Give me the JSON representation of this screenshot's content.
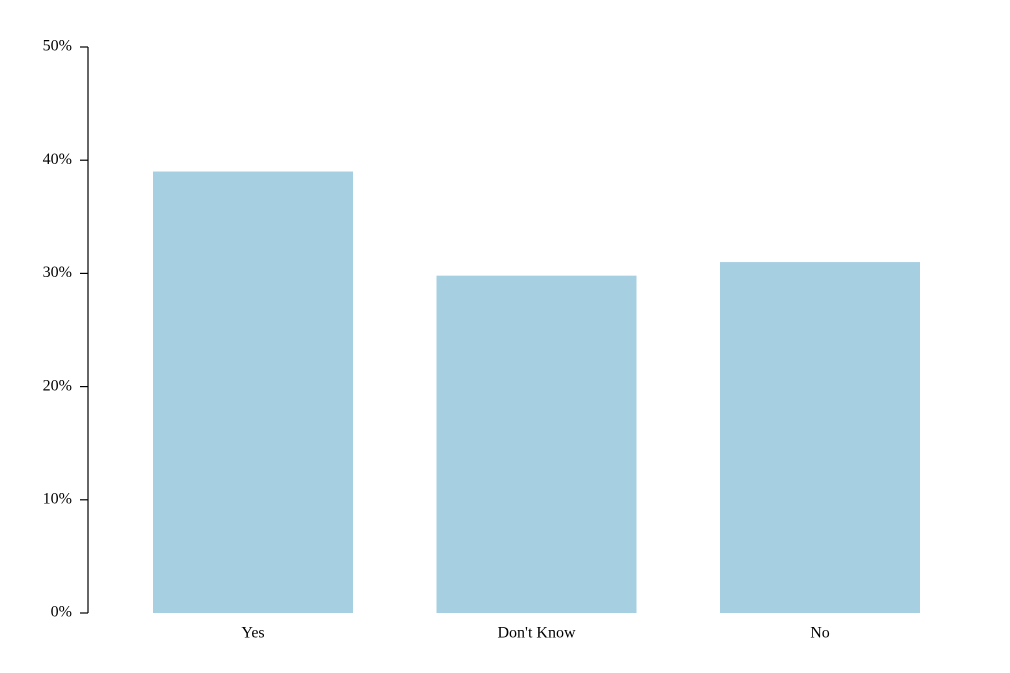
{
  "chart_data": {
    "type": "bar",
    "categories": [
      "Yes",
      "Don't Know",
      "No"
    ],
    "values": [
      39,
      29.8,
      31
    ],
    "color": "#a6cfe2",
    "ylim": [
      0,
      50
    ],
    "yticks": [
      {
        "value": 0,
        "label": "0%"
      },
      {
        "value": 10,
        "label": "10%"
      },
      {
        "value": 20,
        "label": "20%"
      },
      {
        "value": 30,
        "label": "30%"
      },
      {
        "value": 40,
        "label": "40%"
      },
      {
        "value": 50,
        "label": "50%"
      }
    ],
    "grid": false
  }
}
